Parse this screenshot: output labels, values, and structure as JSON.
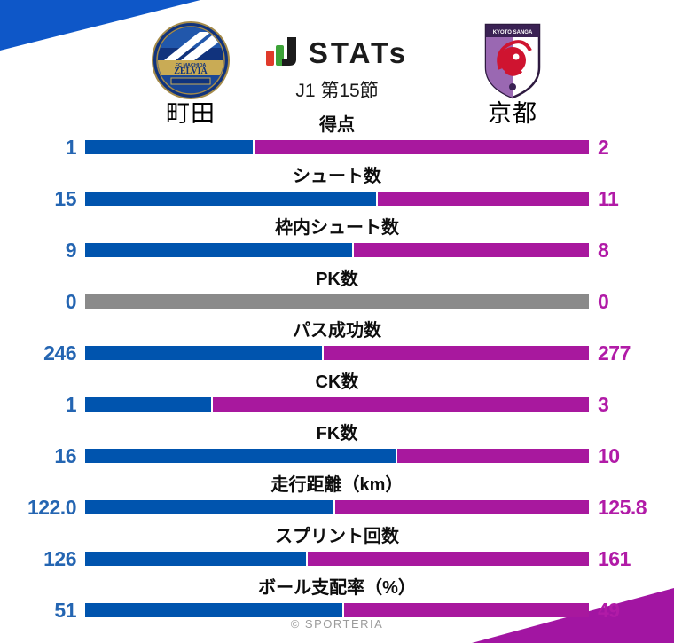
{
  "header": {
    "wordmark": "STATs",
    "match_label": "J1 第15節",
    "home_team": {
      "name": "町田",
      "crest": "machida-zelvia-crest",
      "crest_text_top": "FC MACHIDA",
      "crest_text_main": "ZELVIA"
    },
    "away_team": {
      "name": "京都",
      "crest": "kyoto-sanga-crest",
      "crest_text": "KYOTO SANGA"
    }
  },
  "chart_data": {
    "type": "bar",
    "subtype": "paired-horizontal-comparison",
    "title": "STATs",
    "subtitle": "J1 第15節",
    "legend_position": "none",
    "teams": {
      "home": "町田",
      "away": "京都"
    },
    "colors": {
      "home_bar": "#0054ae",
      "away_bar": "#a8189e",
      "draw_bar": "#8a8a8a",
      "home_value_text": "#2465b2",
      "away_value_text": "#b11ba7",
      "corner_blue": "#0e57c8",
      "corner_magenta": "#a215a2"
    },
    "rows": [
      {
        "label": "得点",
        "home": "1",
        "away": "2",
        "home_value": 1,
        "away_value": 2
      },
      {
        "label": "シュート数",
        "home": "15",
        "away": "11",
        "home_value": 15,
        "away_value": 11
      },
      {
        "label": "枠内シュート数",
        "home": "9",
        "away": "8",
        "home_value": 9,
        "away_value": 8
      },
      {
        "label": "PK数",
        "home": "0",
        "away": "0",
        "home_value": 0,
        "away_value": 0
      },
      {
        "label": "パス成功数",
        "home": "246",
        "away": "277",
        "home_value": 246,
        "away_value": 277
      },
      {
        "label": "CK数",
        "home": "1",
        "away": "3",
        "home_value": 1,
        "away_value": 3
      },
      {
        "label": "FK数",
        "home": "16",
        "away": "10",
        "home_value": 16,
        "away_value": 10
      },
      {
        "label": "走行距離（km）",
        "home": "122.0",
        "away": "125.8",
        "home_value": 122.0,
        "away_value": 125.8
      },
      {
        "label": "スプリント回数",
        "home": "126",
        "away": "161",
        "home_value": 126,
        "away_value": 161
      },
      {
        "label": "ボール支配率（%）",
        "home": "51",
        "away": "49",
        "home_value": 51,
        "away_value": 49
      }
    ]
  },
  "footer": {
    "credit": "© SPORTERIA"
  }
}
